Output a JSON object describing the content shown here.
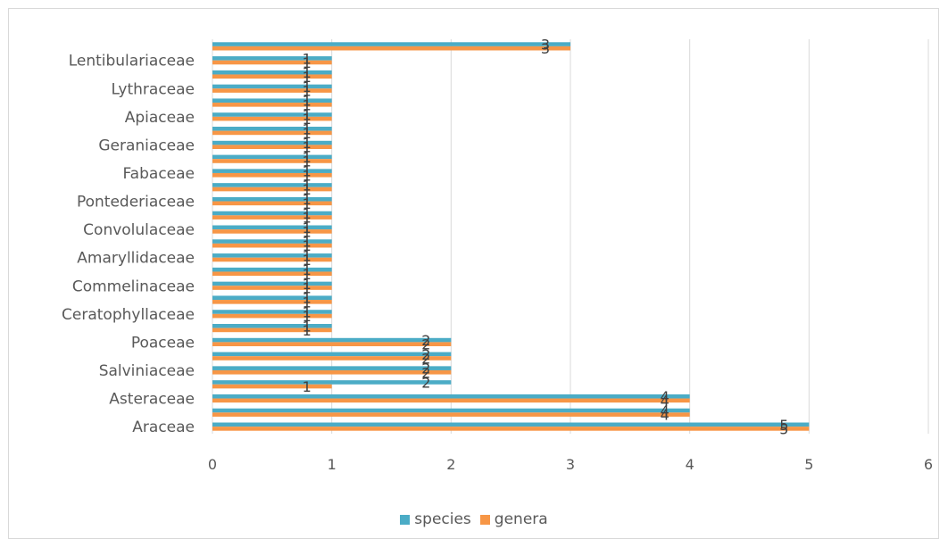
{
  "chart_data": {
    "type": "bar",
    "orientation": "horizontal",
    "categories_top_to_bottom": [
      "",
      "Lentibulariaceae",
      "",
      "Lythraceae",
      "",
      "Apiaceae",
      "",
      "Geraniaceae",
      "",
      "Fabaceae",
      "",
      "Pontederiaceae",
      "",
      "Convolulaceae",
      "",
      "Amaryllidaceae",
      "",
      "Commelinaceae",
      "",
      "Ceratophyllaceae",
      "",
      "Poaceae",
      "",
      "Salviniaceae",
      "",
      "Asteraceae",
      "",
      "Araceae"
    ],
    "series": [
      {
        "name": "species",
        "color": "#4bacc6",
        "values": [
          3,
          1,
          1,
          1,
          1,
          1,
          1,
          1,
          1,
          1,
          1,
          1,
          1,
          1,
          1,
          1,
          1,
          1,
          1,
          1,
          1,
          2,
          2,
          2,
          2,
          4,
          4,
          5
        ]
      },
      {
        "name": "genera",
        "color": "#f79646",
        "values": [
          3,
          1,
          1,
          1,
          1,
          1,
          1,
          1,
          1,
          1,
          1,
          1,
          1,
          1,
          1,
          1,
          1,
          1,
          1,
          1,
          1,
          2,
          2,
          2,
          1,
          4,
          4,
          5
        ]
      }
    ],
    "xlim": [
      0,
      6
    ],
    "xticks": [
      "0",
      "1",
      "2",
      "3",
      "4",
      "5",
      "6"
    ],
    "grid": "vertical",
    "legend_position": "bottom",
    "data_labels": true
  },
  "legend": {
    "species": "species",
    "genera": "genera"
  }
}
